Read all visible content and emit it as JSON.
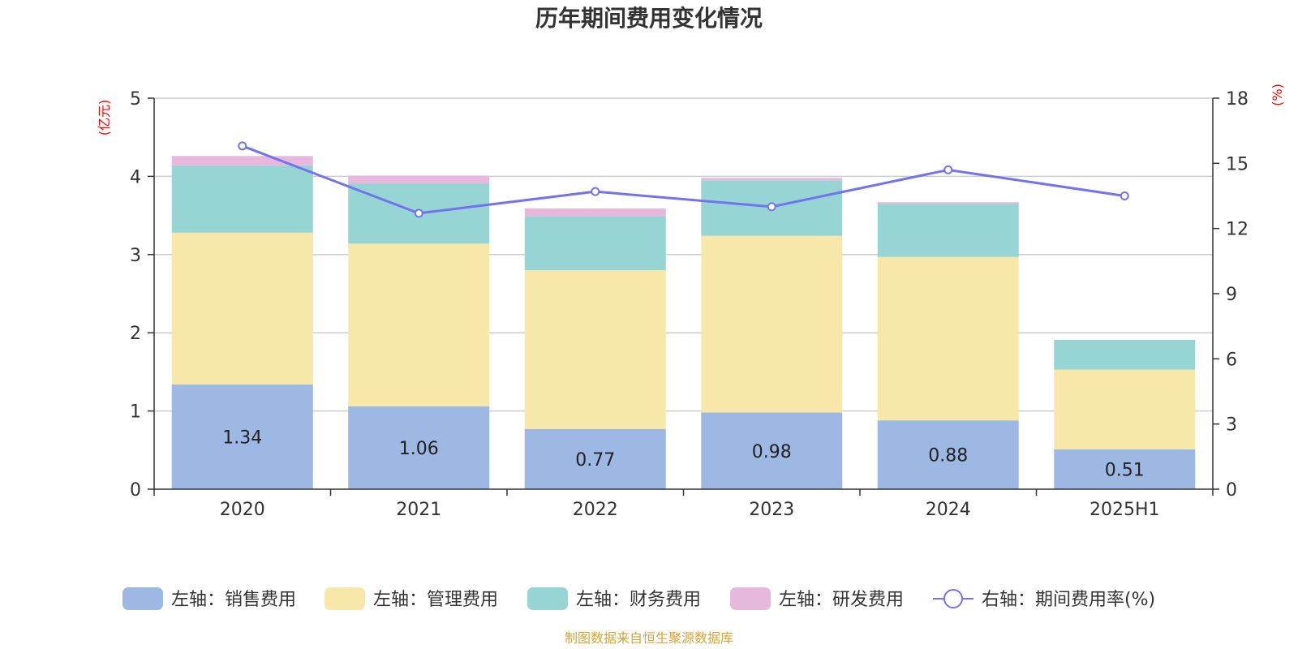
{
  "chart_data": {
    "type": "bar",
    "title": "历年期间费用变化情况",
    "ylabel_left": "(亿元)",
    "ylabel_right": "(%)",
    "categories": [
      "2020",
      "2021",
      "2022",
      "2023",
      "2024",
      "2025H1"
    ],
    "y_left": {
      "min": 0,
      "max": 5,
      "ticks": [
        "0",
        "1",
        "2",
        "3",
        "4",
        "5"
      ]
    },
    "y_right": {
      "min": 0,
      "max": 18,
      "ticks": [
        "0",
        "3",
        "6",
        "9",
        "12",
        "15",
        "18"
      ]
    },
    "grid": true,
    "stacked": true,
    "series": [
      {
        "name": "左轴：销售费用",
        "axis": "left",
        "color": "#9db8e2",
        "values": [
          1.34,
          1.06,
          0.77,
          0.98,
          0.88,
          0.51
        ],
        "labels": [
          "1.34",
          "1.06",
          "0.77",
          "0.98",
          "0.88",
          "0.51"
        ]
      },
      {
        "name": "左轴：管理费用",
        "axis": "left",
        "color": "#f7e7a8",
        "values": [
          1.94,
          2.08,
          2.03,
          2.26,
          2.09,
          1.02
        ]
      },
      {
        "name": "左轴：财务费用",
        "axis": "left",
        "color": "#97d4d4",
        "values": [
          0.86,
          0.77,
          0.69,
          0.71,
          0.68,
          0.38
        ]
      },
      {
        "name": "左轴：研发费用",
        "axis": "left",
        "color": "#e6b9dc",
        "values": [
          0.12,
          0.1,
          0.1,
          0.03,
          0.02,
          0.0
        ]
      }
    ],
    "line": {
      "name": "右轴：期间费用率(%)",
      "axis": "right",
      "color": "#7373f0",
      "values": [
        15.8,
        12.7,
        13.7,
        13.0,
        14.7,
        13.5
      ]
    },
    "legend_position": "bottom"
  },
  "footer": {
    "source": "制图数据来自恒生聚源数据库",
    "source_color": "#d4a537"
  }
}
